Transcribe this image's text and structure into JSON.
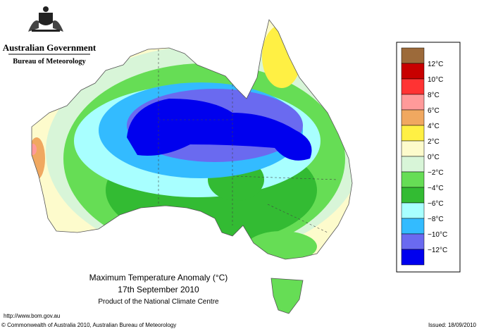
{
  "header": {
    "title": "Australian Government",
    "subtitle": "Bureau of Meteorology"
  },
  "map": {
    "title": "Maximum Temperature Anomaly (°C)",
    "date": "17th September 2010",
    "credit": "Product of the National Climate Centre"
  },
  "legend": {
    "colors": [
      "#9c6a3a",
      "#c80000",
      "#ff3333",
      "#ff9a9a",
      "#f0a860",
      "#fff044",
      "#fdfbcc",
      "#d8f5d8",
      "#66dd55",
      "#33bb33",
      "#a8ffff",
      "#33bbff",
      "#6a6af0",
      "#0000ee"
    ],
    "labels": [
      "12°C",
      "10°C",
      "8°C",
      "6°C",
      "4°C",
      "2°C",
      "0°C",
      "−2°C",
      "−4°C",
      "−6°C",
      "−8°C",
      "−10°C",
      "−12°C"
    ]
  },
  "footer": {
    "url": "http://www.bom.gov.au",
    "copyright": "© Commonwealth of Australia 2010, Australian Bureau of Meteorology",
    "issued": "Issued: 18/09/2010"
  }
}
